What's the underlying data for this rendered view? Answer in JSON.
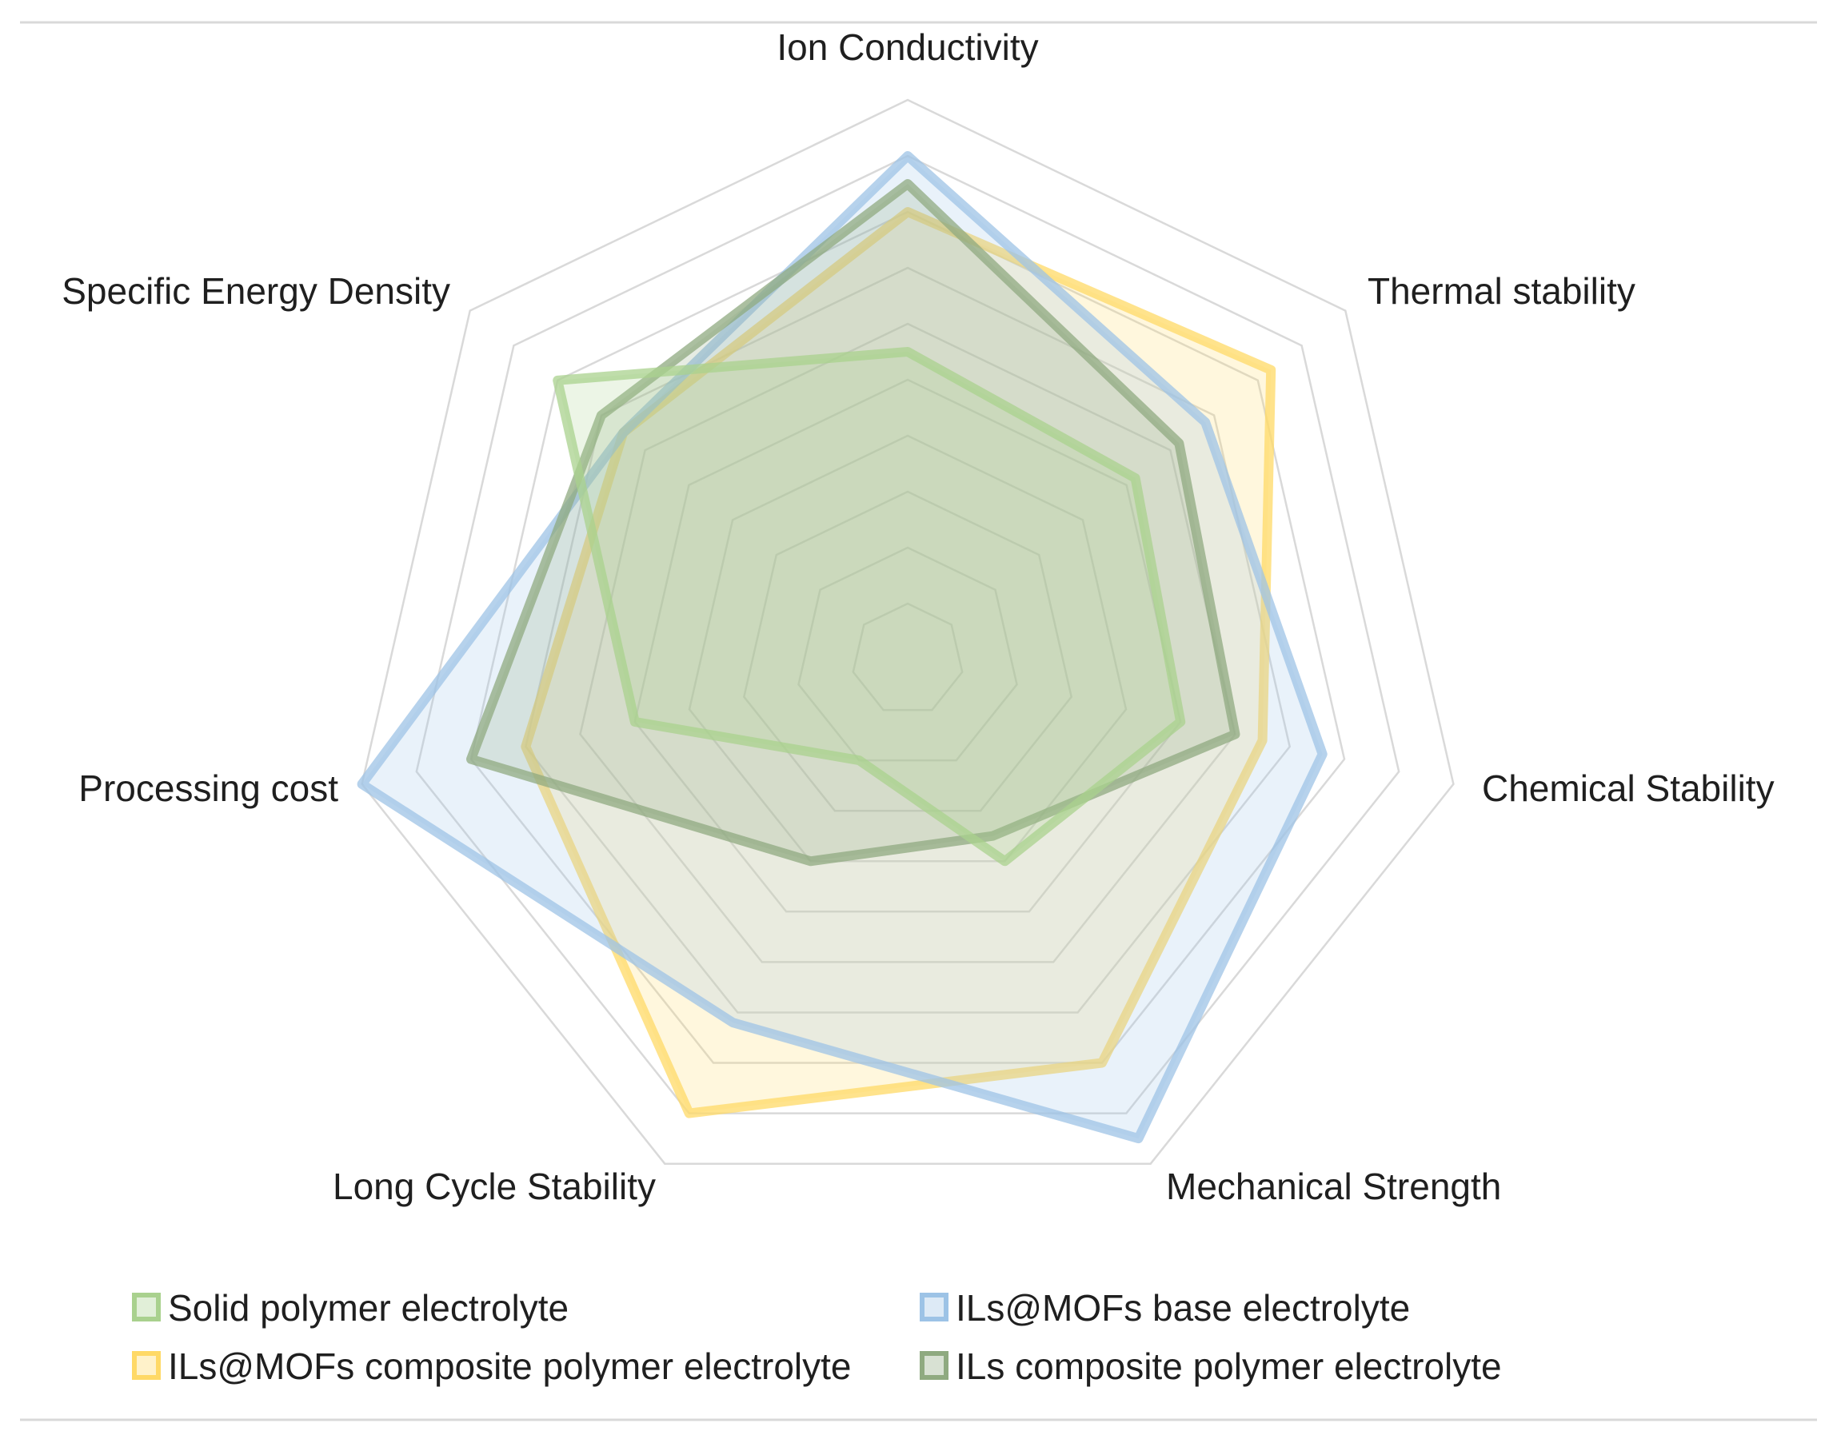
{
  "chart_data": {
    "type": "radar",
    "title": "",
    "axes": [
      "Ion Conductivity",
      "Thermal stability",
      "Chemical Stability",
      "Mechanical Strength",
      "Long Cycle Stability",
      "Processing cost",
      "Specific Energy Density"
    ],
    "rlim": [
      0,
      10
    ],
    "ring_count": 10,
    "grid": true,
    "legend_position": "bottom",
    "series": [
      {
        "name": "ILs@MOFs composite polymer electrolyte",
        "values": [
          8.0,
          8.3,
          6.5,
          8.0,
          9.0,
          7.0,
          6.5
        ],
        "color": "#FFD966"
      },
      {
        "name": "ILs@MOFs base electrolyte",
        "values": [
          9.0,
          6.8,
          7.6,
          9.5,
          7.2,
          10.0,
          6.5
        ],
        "color": "#9DC3E6"
      },
      {
        "name": "ILs composite polymer electrolyte",
        "values": [
          8.5,
          6.2,
          6.0,
          3.5,
          4.0,
          8.0,
          7.0
        ],
        "color": "#8FAA80"
      },
      {
        "name": "Solid polymer electrolyte",
        "values": [
          5.5,
          5.2,
          5.0,
          4.0,
          2.0,
          5.0,
          8.0
        ],
        "color": "#A9D18E"
      }
    ],
    "legend": [
      {
        "name": "Solid polymer electrolyte",
        "color": "#A9D18E"
      },
      {
        "name": "ILs@MOFs base electrolyte",
        "color": "#9DC3E6"
      },
      {
        "name": "ILs@MOFs composite polymer electrolyte",
        "color": "#FFD966"
      },
      {
        "name": "ILs composite polymer electrolyte",
        "color": "#8FAA80"
      }
    ],
    "grid_color": "#d9d9d9",
    "frame_color": "#d9d9d9"
  }
}
